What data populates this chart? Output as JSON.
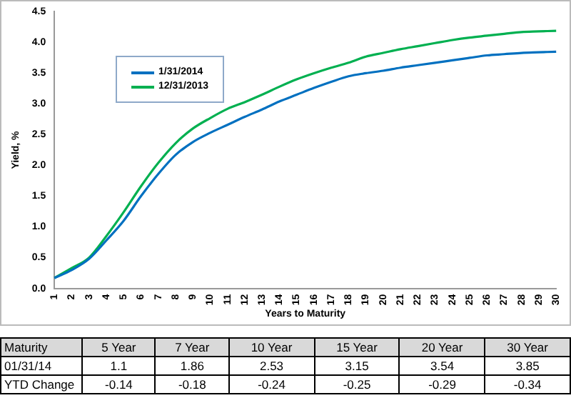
{
  "chart_data": {
    "type": "line",
    "xlabel": "Years to Maturity",
    "ylabel": "Yield, %",
    "categories": [
      "1",
      "2",
      "3",
      "4",
      "5",
      "6",
      "7",
      "8",
      "9",
      "10",
      "11",
      "12",
      "13",
      "14",
      "15",
      "16",
      "17",
      "18",
      "19",
      "20",
      "21",
      "22",
      "23",
      "24",
      "25",
      "26",
      "27",
      "28",
      "29",
      "30"
    ],
    "series": [
      {
        "name": "1/31/2014",
        "color": "#0070c0",
        "values": [
          0.17,
          0.3,
          0.48,
          0.78,
          1.1,
          1.5,
          1.86,
          2.17,
          2.38,
          2.53,
          2.66,
          2.79,
          2.91,
          3.04,
          3.15,
          3.26,
          3.36,
          3.45,
          3.5,
          3.54,
          3.59,
          3.63,
          3.67,
          3.71,
          3.75,
          3.79,
          3.81,
          3.83,
          3.84,
          3.85
        ]
      },
      {
        "name": "12/31/2013",
        "color": "#00b050",
        "values": [
          0.17,
          0.33,
          0.5,
          0.85,
          1.24,
          1.66,
          2.04,
          2.36,
          2.6,
          2.77,
          2.92,
          3.03,
          3.15,
          3.28,
          3.4,
          3.5,
          3.59,
          3.67,
          3.77,
          3.83,
          3.89,
          3.94,
          3.99,
          4.04,
          4.08,
          4.11,
          4.14,
          4.17,
          4.18,
          4.19
        ]
      }
    ],
    "ylim": [
      0,
      4.5
    ],
    "yticks": [
      {
        "value": 0,
        "label": "0.0"
      },
      {
        "value": 0.5,
        "label": "0.5"
      },
      {
        "value": 1,
        "label": "1.0"
      },
      {
        "value": 1.5,
        "label": "1.5"
      },
      {
        "value": 2,
        "label": "2.0"
      },
      {
        "value": 2.5,
        "label": "2.5"
      },
      {
        "value": 3,
        "label": "3.0"
      },
      {
        "value": 3.5,
        "label": "3.5"
      },
      {
        "value": 4,
        "label": "4.0"
      },
      {
        "value": 4.5,
        "label": "4.5"
      }
    ],
    "grid": false,
    "legend": "top left",
    "marker": "none",
    "line_style": "solid",
    "annotations": [
      "Maturity",
      "5 Year",
      "7 Year",
      "10 Year",
      "15 Year",
      "20 Year",
      "30 Year",
      "01/31/14",
      "1.1",
      "1.86",
      "2.53",
      "3.15",
      "3.54",
      "3.85",
      "YTD Change",
      "-0.14",
      "-0.18",
      "-0.24",
      "-0.25",
      "-0.29",
      "-0.34"
    ]
  }
}
